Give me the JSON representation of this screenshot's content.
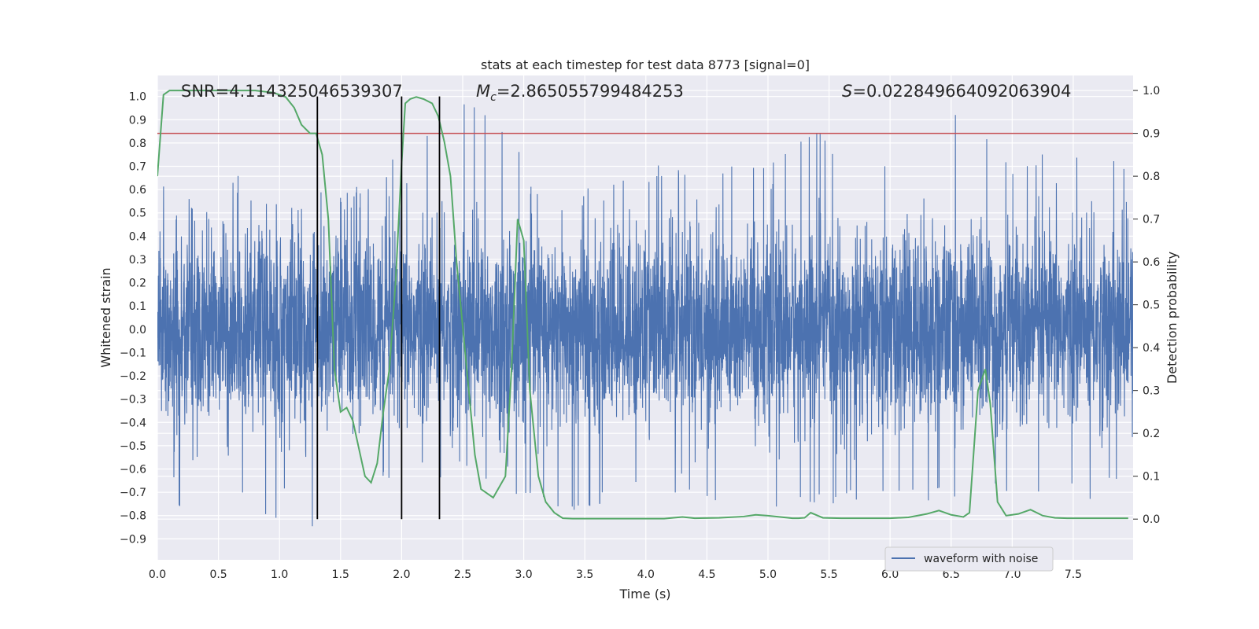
{
  "chart_data": {
    "type": "line",
    "title": "stats at each timestep for test data 8773 [signal=0]",
    "xlabel": "Time (s)",
    "ylabel": "Whitened strain",
    "ylabel_right": "Detection probability",
    "xlim": [
      0.0,
      7.99
    ],
    "ylim": [
      -0.99,
      1.09
    ],
    "ylim_right": [
      -0.095,
      1.035
    ],
    "xticks": [
      "0.0",
      "0.5",
      "1.0",
      "1.5",
      "2.0",
      "2.5",
      "3.0",
      "3.5",
      "4.0",
      "4.5",
      "5.0",
      "5.5",
      "6.0",
      "6.5",
      "7.0",
      "7.5"
    ],
    "yticks": [
      "-0.9",
      "-0.8",
      "-0.7",
      "-0.6",
      "-0.5",
      "-0.4",
      "-0.3",
      "-0.2",
      "-0.1",
      "0.0",
      "0.1",
      "0.2",
      "0.3",
      "0.4",
      "0.5",
      "0.6",
      "0.7",
      "0.8",
      "0.9",
      "1.0"
    ],
    "yticks_right": [
      "0.0",
      "0.1",
      "0.2",
      "0.3",
      "0.4",
      "0.5",
      "0.6",
      "0.7",
      "0.8",
      "0.9",
      "1.0"
    ],
    "annotations": {
      "snr": "SNR=4.114325046539307",
      "mc_symbol": "M",
      "mc_sub": "c",
      "mc_value": "=2.865055799484253",
      "s_symbol": "S",
      "s_value": "=0.022849664092063904"
    },
    "legend": {
      "label": "waveform with noise",
      "location": "lower right"
    },
    "threshold_right": 0.9,
    "vertical_lines_x": [
      1.31,
      2.0,
      2.31
    ],
    "series": [
      {
        "name": "waveform with noise",
        "axis": "left",
        "color": "#4c72b0",
        "description": "dense noisy strain; approximate envelope",
        "envelope_upper": [
          [
            0.0,
            0.55
          ],
          [
            0.1,
            0.8
          ],
          [
            0.3,
            0.55
          ],
          [
            0.5,
            0.5
          ],
          [
            0.8,
            0.88
          ],
          [
            1.0,
            0.62
          ],
          [
            1.3,
            0.6
          ],
          [
            1.5,
            0.6
          ],
          [
            1.8,
            0.65
          ],
          [
            2.1,
            0.88
          ],
          [
            2.25,
            0.9
          ],
          [
            2.58,
            1.0
          ],
          [
            2.9,
            0.8
          ],
          [
            3.3,
            0.6
          ],
          [
            4.0,
            0.7
          ],
          [
            4.5,
            0.72
          ],
          [
            5.0,
            0.72
          ],
          [
            5.4,
            0.86
          ],
          [
            6.0,
            0.74
          ],
          [
            6.5,
            0.95
          ],
          [
            7.0,
            0.74
          ],
          [
            7.5,
            0.8
          ],
          [
            7.99,
            0.7
          ]
        ],
        "envelope_lower": [
          [
            0.0,
            -0.65
          ],
          [
            0.25,
            -0.83
          ],
          [
            0.5,
            -0.6
          ],
          [
            0.85,
            -0.82
          ],
          [
            1.24,
            -0.89
          ],
          [
            1.5,
            -0.62
          ],
          [
            2.0,
            -0.7
          ],
          [
            2.5,
            -0.62
          ],
          [
            3.0,
            -0.72
          ],
          [
            3.3,
            -0.8
          ],
          [
            4.0,
            -0.7
          ],
          [
            4.5,
            -0.75
          ],
          [
            5.0,
            -0.85
          ],
          [
            5.5,
            -0.75
          ],
          [
            6.0,
            -0.72
          ],
          [
            6.5,
            -0.75
          ],
          [
            7.0,
            -0.72
          ],
          [
            7.5,
            -0.78
          ],
          [
            7.99,
            -0.65
          ]
        ]
      },
      {
        "name": "Detection probability",
        "axis": "right",
        "color": "#55a868",
        "x": [
          0.0,
          0.05,
          0.1,
          0.2,
          0.4,
          0.6,
          0.8,
          0.95,
          1.05,
          1.12,
          1.18,
          1.25,
          1.3,
          1.35,
          1.4,
          1.45,
          1.5,
          1.55,
          1.6,
          1.7,
          1.75,
          1.8,
          1.85,
          1.9,
          1.95,
          2.0,
          2.03,
          2.07,
          2.12,
          2.18,
          2.25,
          2.3,
          2.35,
          2.4,
          2.45,
          2.5,
          2.55,
          2.6,
          2.65,
          2.75,
          2.85,
          2.9,
          2.95,
          3.0,
          3.05,
          3.12,
          3.18,
          3.25,
          3.32,
          3.4,
          3.6,
          3.8,
          4.0,
          4.15,
          4.3,
          4.4,
          4.6,
          4.8,
          4.9,
          5.0,
          5.1,
          5.2,
          5.25,
          5.3,
          5.35,
          5.45,
          5.6,
          5.8,
          6.0,
          6.15,
          6.3,
          6.4,
          6.5,
          6.6,
          6.65,
          6.72,
          6.78,
          6.82,
          6.88,
          6.95,
          7.05,
          7.15,
          7.25,
          7.35,
          7.45,
          7.6,
          7.8,
          7.95
        ],
        "y": [
          0.8,
          0.99,
          1.0,
          1.0,
          1.0,
          1.0,
          1.0,
          0.995,
          0.985,
          0.96,
          0.92,
          0.9,
          0.9,
          0.85,
          0.7,
          0.35,
          0.25,
          0.26,
          0.23,
          0.1,
          0.085,
          0.13,
          0.25,
          0.35,
          0.55,
          0.83,
          0.97,
          0.98,
          0.985,
          0.98,
          0.97,
          0.94,
          0.88,
          0.8,
          0.6,
          0.45,
          0.3,
          0.15,
          0.07,
          0.05,
          0.1,
          0.35,
          0.7,
          0.65,
          0.3,
          0.1,
          0.04,
          0.015,
          0.002,
          0.001,
          0.001,
          0.001,
          0.001,
          0.001,
          0.005,
          0.002,
          0.003,
          0.006,
          0.01,
          0.008,
          0.005,
          0.002,
          0.002,
          0.003,
          0.015,
          0.003,
          0.002,
          0.002,
          0.002,
          0.004,
          0.012,
          0.02,
          0.01,
          0.005,
          0.015,
          0.3,
          0.35,
          0.27,
          0.04,
          0.008,
          0.012,
          0.022,
          0.008,
          0.003,
          0.002,
          0.002,
          0.002,
          0.002
        ]
      }
    ]
  }
}
